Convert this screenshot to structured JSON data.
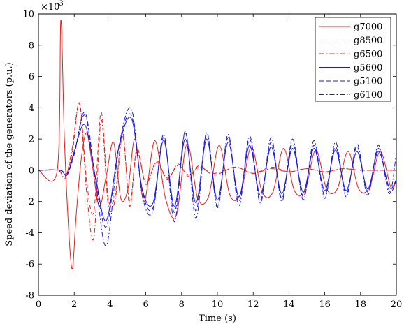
{
  "chart_data": {
    "type": "line",
    "title": "",
    "xlabel": "Time (s)",
    "ylabel": "Speed deviation of the generators (p.u.)",
    "y_exponent_base": "×10",
    "y_exponent_power": "-3",
    "xlim": [
      0,
      20
    ],
    "ylim": [
      -8,
      10
    ],
    "x_ticks": [
      0,
      2,
      4,
      6,
      8,
      10,
      12,
      14,
      16,
      18,
      20
    ],
    "y_ticks": [
      -8,
      -6,
      -4,
      -2,
      0,
      2,
      4,
      6,
      8,
      10
    ],
    "grid": false,
    "legend_position": "top-right",
    "series": [
      {
        "name": "g7000",
        "color": "#e8201c",
        "style": "solid",
        "x": [
          0,
          1.05,
          1.25,
          1.45,
          1.7,
          1.9,
          2.1,
          2.4,
          2.7,
          3.0,
          3.4,
          3.8,
          4.2,
          4.6,
          5.0,
          5.4,
          5.9,
          6.5,
          7.1,
          7.7,
          8.3,
          8.9,
          9.5,
          10.1,
          10.7,
          11.3,
          11.9,
          12.5,
          13.1,
          13.7,
          14.3,
          14.9,
          15.5,
          16.1,
          16.7,
          17.3,
          17.9,
          18.5,
          19.1,
          19.7,
          20
        ],
        "y": [
          0,
          0,
          9.6,
          2,
          -4,
          -6.3,
          -3,
          0.8,
          2.4,
          0.4,
          -2.3,
          -0.3,
          1.8,
          -1.8,
          -1.2,
          2.0,
          -2.0,
          1.9,
          -1.8,
          -2.9,
          1.7,
          -1.8,
          -1.7,
          1.6,
          -1.6,
          -1.5,
          1.5,
          -1.4,
          -1.4,
          1.4,
          -1.3,
          -1.3,
          1.3,
          -1.2,
          -1.2,
          1.2,
          -1.2,
          -1.1,
          1.2,
          -1.1,
          -0.6
        ]
      },
      {
        "name": "g8500",
        "color": "#e8201c",
        "style": "dashed",
        "x": [
          0,
          1.1,
          1.5,
          1.9,
          2.3,
          2.7,
          3.1,
          3.5,
          3.9,
          4.3,
          4.7,
          5.1,
          5.5,
          6.0,
          6.6,
          7.2,
          7.8,
          8.4,
          9.0,
          9.8,
          11,
          12,
          13,
          14,
          15,
          16,
          17,
          18,
          19,
          20
        ],
        "y": [
          0,
          0,
          -0.4,
          1.2,
          4.3,
          -0.8,
          -2.6,
          3.7,
          -1.8,
          -1.5,
          2.5,
          -2.3,
          1.4,
          -0.9,
          0.6,
          -0.6,
          0.4,
          -0.4,
          0.3,
          -0.3,
          0.2,
          -0.2,
          0.2,
          -0.1,
          0.1,
          -0.1,
          0.1,
          0,
          0,
          0
        ]
      },
      {
        "name": "g6500",
        "color": "#e8201c",
        "style": "dashdot",
        "x": [
          0,
          1.1,
          1.5,
          1.9,
          2.3,
          2.7,
          3.1,
          3.5,
          3.9,
          4.3,
          4.7,
          5.1,
          5.5,
          6.0,
          6.6,
          7.2,
          7.8,
          8.4,
          9.0,
          9.8,
          11,
          12,
          13,
          14,
          15,
          16,
          17,
          18,
          19,
          20
        ],
        "y": [
          0,
          0,
          -0.5,
          1.5,
          4.2,
          -1.5,
          -4.3,
          3.2,
          -2.2,
          -1.8,
          2.2,
          -2.0,
          1.2,
          -0.8,
          0.5,
          -0.5,
          0.3,
          -0.3,
          0.2,
          -0.2,
          0.2,
          -0.2,
          0.1,
          -0.1,
          0.1,
          -0.1,
          0.1,
          0,
          0,
          0
        ]
      },
      {
        "name": "g5600",
        "color": "#1a1ae6",
        "style": "solid",
        "x": [
          0,
          1.2,
          1.6,
          2.0,
          2.6,
          3.2,
          3.8,
          4.5,
          5.2,
          5.8,
          6.4,
          7.0,
          7.6,
          8.2,
          8.8,
          9.4,
          10.0,
          10.6,
          11.2,
          11.8,
          12.4,
          13.0,
          13.6,
          14.2,
          14.8,
          15.4,
          16.0,
          16.6,
          17.2,
          17.8,
          18.4,
          19.0,
          19.6,
          20
        ],
        "y": [
          0,
          0,
          -0.3,
          1.2,
          2.9,
          -0.5,
          -3.2,
          1.5,
          3.3,
          -1.2,
          -2.1,
          1.9,
          -2.3,
          2.0,
          -2.1,
          2.0,
          -1.9,
          1.8,
          -1.7,
          1.6,
          -1.6,
          1.5,
          -1.5,
          1.4,
          -1.4,
          1.4,
          -1.3,
          1.3,
          -1.3,
          1.2,
          -1.2,
          1.2,
          -1.1,
          -0.6
        ]
      },
      {
        "name": "g5100",
        "color": "#1a1ae6",
        "style": "dashed",
        "x": [
          0,
          1.2,
          1.6,
          2.0,
          2.6,
          3.2,
          3.8,
          4.5,
          5.2,
          5.8,
          6.4,
          7.0,
          7.6,
          8.2,
          8.8,
          9.4,
          10.0,
          10.6,
          11.2,
          11.8,
          12.4,
          13.0,
          13.6,
          14.2,
          14.8,
          15.4,
          16.0,
          16.6,
          17.2,
          17.8,
          18.4,
          19.0,
          19.6,
          20
        ],
        "y": [
          0,
          0,
          -0.2,
          1.0,
          3.7,
          -0.6,
          -3.6,
          1.6,
          3.5,
          -1.3,
          -2.4,
          2.1,
          -2.7,
          2.4,
          -2.6,
          2.4,
          -2.3,
          2.1,
          -2.0,
          2.0,
          -1.9,
          1.8,
          -1.8,
          1.7,
          -1.7,
          1.6,
          -1.6,
          1.5,
          -1.5,
          1.5,
          -1.4,
          1.4,
          -1.3,
          -0.7
        ]
      },
      {
        "name": "g6100",
        "color": "#1a1ae6",
        "style": "dashdot",
        "x": [
          0,
          1.2,
          1.6,
          2.0,
          2.6,
          3.2,
          3.8,
          4.5,
          5.2,
          5.8,
          6.4,
          7.0,
          7.6,
          8.2,
          8.8,
          9.4,
          10.0,
          10.6,
          11.2,
          11.8,
          12.4,
          13.0,
          13.6,
          14.2,
          14.8,
          15.4,
          16.0,
          16.6,
          17.2,
          17.8,
          18.4,
          19.0,
          19.6,
          20
        ],
        "y": [
          0,
          0,
          -0.3,
          1.1,
          3.5,
          -0.8,
          -4.8,
          1.5,
          3.9,
          -1.6,
          -2.6,
          2.3,
          -3.3,
          2.5,
          -3.1,
          2.4,
          -2.4,
          2.3,
          -2.3,
          2.2,
          -2.1,
          2.1,
          -2.0,
          2.0,
          -1.9,
          1.9,
          -1.8,
          1.8,
          -1.7,
          1.7,
          -1.6,
          1.6,
          -1.5,
          1.1
        ]
      }
    ]
  }
}
